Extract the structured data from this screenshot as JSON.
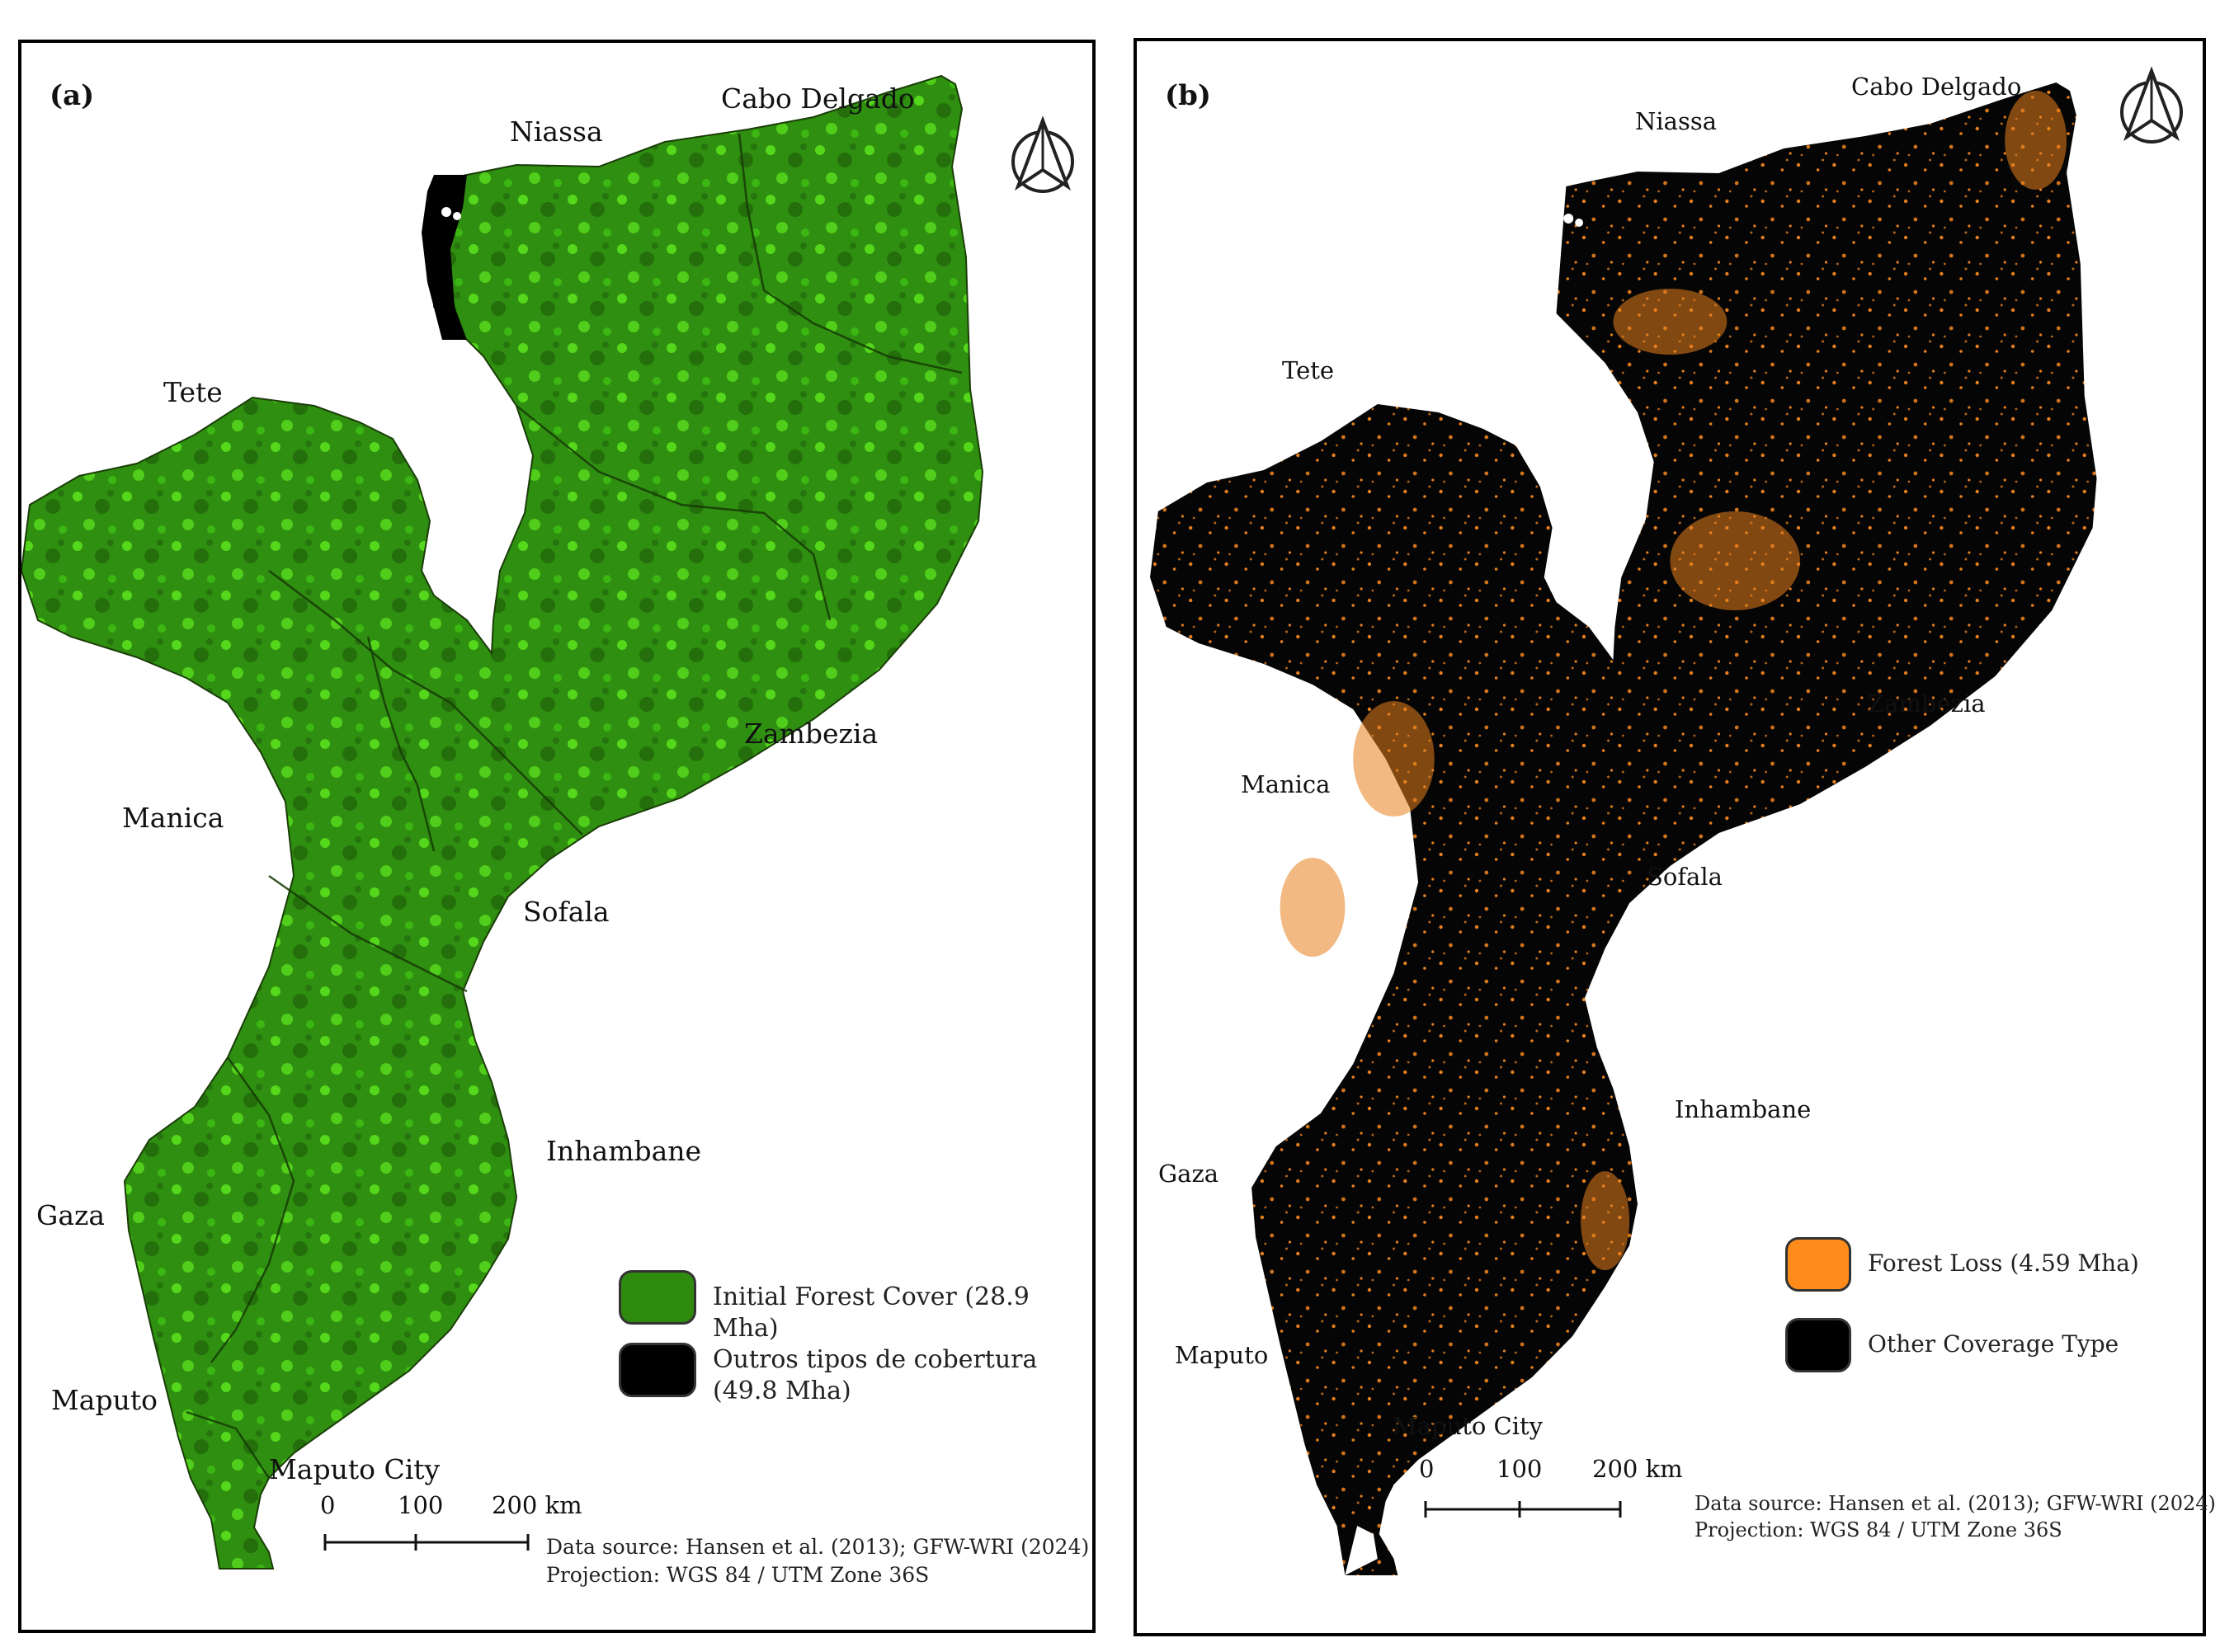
{
  "panel_a": {
    "letter": "(a)",
    "provinces": {
      "cabo_delgado": "Cabo Delgado",
      "niassa": "Niassa",
      "tete": "Tete",
      "zambezia": "Zambezia",
      "manica": "Manica",
      "sofala": "Sofala",
      "inhambane": "Inhambane",
      "gaza": "Gaza",
      "maputo": "Maputo",
      "maputo_city": "Maputo City"
    },
    "legend": [
      {
        "label": "Initial Forest Cover (28.9 Mha)",
        "color": "#2e8b0e"
      },
      {
        "label": "Outros tipos de cobertura (49.8 Mha)",
        "color": "#000000"
      }
    ],
    "scale": {
      "ticks": [
        "0",
        "100",
        "200 km"
      ]
    },
    "source_line1": "Data source: Hansen et al. (2013); GFW-WRI (2024)",
    "source_line2": "Projection: WGS 84 / UTM Zone 36S",
    "map_colors": {
      "fill": "#2f8f10",
      "light": "#5fe81f",
      "dark": "#1d5a0a",
      "lake": "#000000"
    }
  },
  "panel_b": {
    "letter": "(b)",
    "provinces": {
      "cabo_delgado": "Cabo Delgado",
      "niassa": "Niassa",
      "tete": "Tete",
      "zambezia": "Zambezia",
      "manica": "Manica",
      "sofala": "Sofala",
      "inhambane": "Inhambane",
      "gaza": "Gaza",
      "maputo": "Maputo",
      "maputo_city": "Maputo City"
    },
    "legend": [
      {
        "label": "Forest Loss (4.59 Mha)",
        "color": "#ff8c1a"
      },
      {
        "label": "Other Coverage Type",
        "color": "#000000"
      }
    ],
    "scale": {
      "ticks": [
        "0",
        "100",
        "200 km"
      ]
    },
    "source_line1": "Data source: Hansen et al. (2013); GFW-WRI (2024)",
    "source_line2": "Projection: WGS 84 / UTM Zone 36S",
    "map_colors": {
      "fill": "#050505",
      "speckle": "#e8801e"
    }
  }
}
